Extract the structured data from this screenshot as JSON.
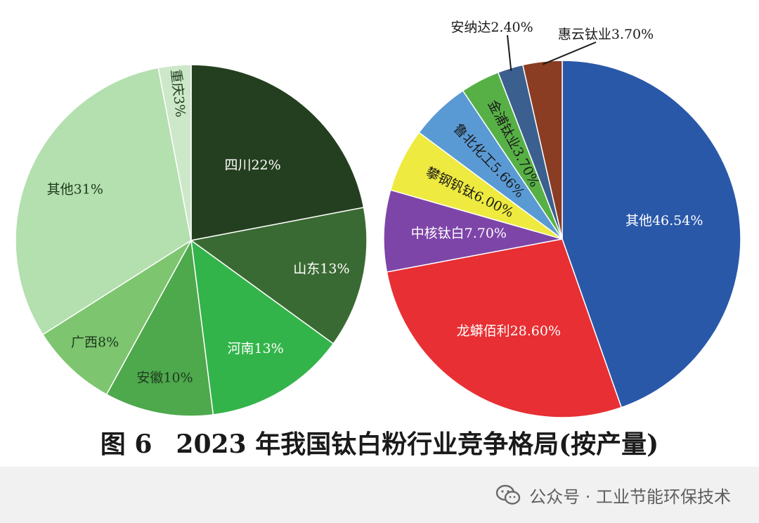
{
  "colors": {
    "left": [
      "#243f1f",
      "#3a6a33",
      "#33b44a",
      "#4ea84c",
      "#7dc56f",
      "#b4dfaf",
      "#cde8c9"
    ],
    "right": [
      "#2a58a9",
      "#e82f33",
      "#7d45a8",
      "#eeea3f",
      "#5a9ad4",
      "#57b046",
      "#3b5f8f",
      "#8a3d22"
    ]
  },
  "chart_data": [
    {
      "type": "pie",
      "title": "",
      "slices": [
        {
          "name": "四川",
          "value": 22,
          "label": "四川22%"
        },
        {
          "name": "山东",
          "value": 13,
          "label": "山东13%"
        },
        {
          "name": "河南",
          "value": 13,
          "label": "河南13%"
        },
        {
          "name": "安徽",
          "value": 10,
          "label": "安徽10%"
        },
        {
          "name": "广西",
          "value": 8,
          "label": "广西8%"
        },
        {
          "name": "其他",
          "value": 31,
          "label": "其他31%"
        },
        {
          "name": "重庆",
          "value": 3,
          "label": "重庆3%"
        }
      ]
    },
    {
      "type": "pie",
      "title": "",
      "slices": [
        {
          "name": "其他",
          "value": 46.54,
          "label": "其他46.54%"
        },
        {
          "name": "龙蟒佰利",
          "value": 28.6,
          "label": "龙蟒佰利28.60%"
        },
        {
          "name": "中核钛白",
          "value": 7.7,
          "label": "中核钛白7.70%"
        },
        {
          "name": "攀钢钒钛",
          "value": 6.0,
          "label": "攀钢钒钛6.00%"
        },
        {
          "name": "鲁北化工",
          "value": 5.66,
          "label": "鲁北化工5.66%"
        },
        {
          "name": "金浦钛业",
          "value": 3.7,
          "label": "金浦钛业3.70%"
        },
        {
          "name": "安纳达",
          "value": 2.4,
          "label": "安纳达2.40%"
        },
        {
          "name": "惠云钛业",
          "value": 3.7,
          "label": "惠云钛业3.70%"
        }
      ]
    }
  ],
  "caption": {
    "number": "图 6",
    "text": "2023 年我国钛白粉行业竞争格局(按产量)"
  },
  "footer": {
    "source": "公众号 · 工业节能环保技术"
  }
}
